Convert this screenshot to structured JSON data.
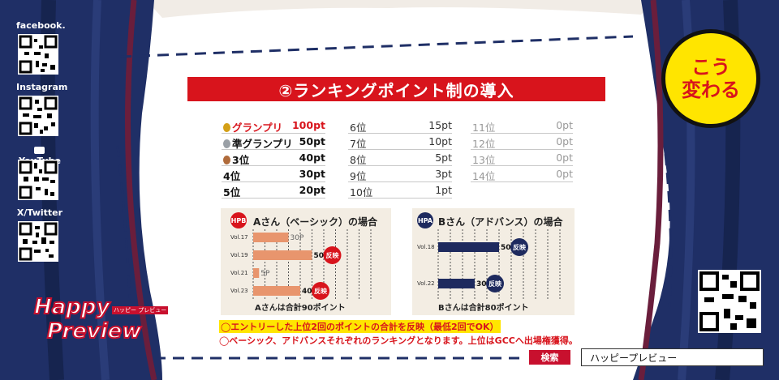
{
  "social": {
    "facebook": "facebook.",
    "instagram": "Instagram",
    "youtube": "YouTube",
    "twitter": "X/Twitter"
  },
  "logo": {
    "line1": "Happy",
    "line2": "Preview",
    "tag": "ハッピー プレビュー"
  },
  "badge": {
    "line1": "こう",
    "line2": "変わる"
  },
  "title": "②ランキングポイント制の導入",
  "ranking": {
    "col1": [
      {
        "name": "グランプリ",
        "pts": "100pt",
        "medal": "gold"
      },
      {
        "name": "準グランプリ",
        "pts": "50pt",
        "medal": "silver"
      },
      {
        "name": "3位",
        "pts": "40pt",
        "medal": "bronze"
      },
      {
        "name": "4位",
        "pts": "30pt"
      },
      {
        "name": "5位",
        "pts": "20pt"
      }
    ],
    "col2": [
      {
        "name": "6位",
        "pts": "15pt"
      },
      {
        "name": "7位",
        "pts": "10pt"
      },
      {
        "name": "8位",
        "pts": "5pt"
      },
      {
        "name": "9位",
        "pts": "3pt"
      },
      {
        "name": "10位",
        "pts": "1pt"
      }
    ],
    "col3": [
      {
        "name": "11位",
        "pts": "0pt"
      },
      {
        "name": "12位",
        "pts": "0pt"
      },
      {
        "name": "13位",
        "pts": "0pt"
      },
      {
        "name": "14位",
        "pts": "0pt"
      }
    ]
  },
  "panel_a": {
    "badge": "HPB",
    "title": "Aさん（ベーシック）の場合",
    "total": "Aさんは合計90ポイント",
    "reflect": "反映",
    "color": "#e8956d",
    "rows": [
      {
        "vol": "Vol.17",
        "points": 30,
        "label": "30P",
        "reflected": false
      },
      {
        "vol": "Vol.19",
        "points": 50,
        "label": "50P",
        "reflected": true
      },
      {
        "vol": "Vol.21",
        "points": 5,
        "label": "5P",
        "reflected": false
      },
      {
        "vol": "Vol.23",
        "points": 40,
        "label": "40P",
        "reflected": true
      }
    ]
  },
  "panel_b": {
    "badge": "HPA",
    "title": "Bさん（アドバンス）の場合",
    "total": "Bさんは合計80ポイント",
    "reflect": "反映",
    "color": "#1e2a5e",
    "rows": [
      {
        "vol": "Vol.18",
        "points": 50,
        "label": "50P",
        "reflected": true
      },
      {
        "vol": "Vol.22",
        "points": 30,
        "label": "30P",
        "reflected": true
      }
    ]
  },
  "notes": {
    "note1": "◯エントリーした上位2回のポイントの合計を反映（最低2回でOK）",
    "note2": "◯ベーシック、アドバンスそれぞれのランキングとなります。上位はGCCへ出場権獲得。"
  },
  "search": {
    "button": "検索",
    "query": "ハッピープレビュー"
  },
  "colors": {
    "red": "#d8141c",
    "navy": "#1e2a5e",
    "orange": "#e8956d",
    "yellow": "#ffe500"
  }
}
